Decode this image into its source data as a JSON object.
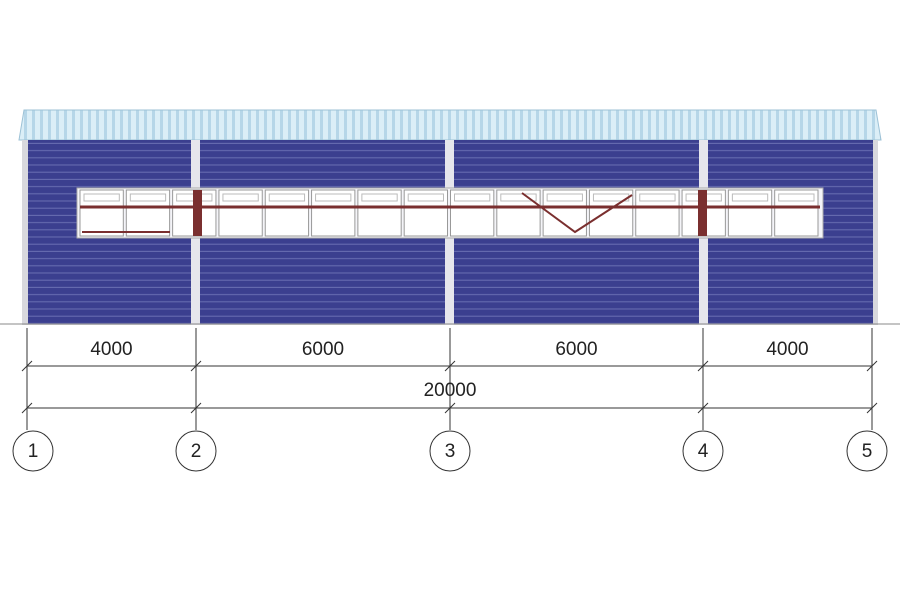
{
  "dimensions": {
    "spans": [
      4000,
      6000,
      6000,
      4000
    ],
    "total": 20000
  },
  "axes": [
    "1",
    "2",
    "3",
    "4",
    "5"
  ]
}
